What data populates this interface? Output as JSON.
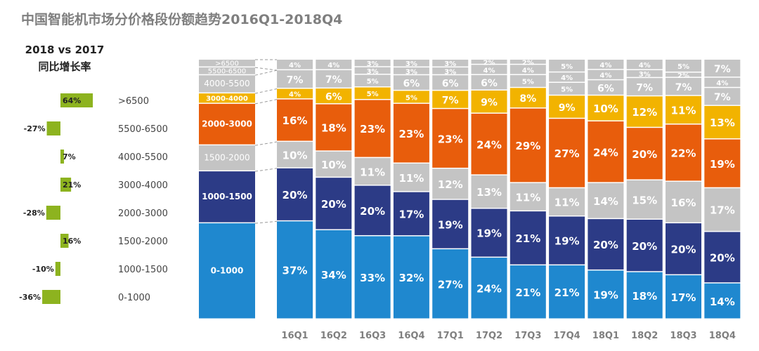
{
  "chart_data": {
    "type": "bar",
    "title": "中国智能机市场分价格段份额趋势2016Q1-2018Q4",
    "growth_panel": {
      "title_line1": "2018 vs 2017",
      "title_line2": "同比增长率",
      "rows": [
        {
          "segment": ">6500",
          "value": 64,
          "label": "64%"
        },
        {
          "segment": "5500-6500",
          "value": -27,
          "label": "-27%"
        },
        {
          "segment": "4000-5500",
          "value": 7,
          "label": "7%"
        },
        {
          "segment": "3000-4000",
          "value": 21,
          "label": "21%"
        },
        {
          "segment": "2000-3000",
          "value": -28,
          "label": "-28%"
        },
        {
          "segment": "1500-2000",
          "value": 16,
          "label": "16%"
        },
        {
          "segment": "1000-1500",
          "value": -10,
          "label": "-10%"
        },
        {
          "segment": "0-1000",
          "value": -36,
          "label": "-36%"
        }
      ]
    },
    "legend_bar": {
      "segments": [
        {
          "label": "0-1000",
          "value": 37
        },
        {
          "label": "1000-1500",
          "value": 20
        },
        {
          "label": "1500-2000",
          "value": 10
        },
        {
          "label": "2000-3000",
          "value": 16
        },
        {
          "label": "3000-4000",
          "value": 4
        },
        {
          "label": "4000-5500",
          "value": 7
        },
        {
          "label": "5500-6500",
          "value": 3
        },
        {
          "label": ">6500",
          "value": 3
        }
      ]
    },
    "categories": [
      "16Q1",
      "16Q2",
      "16Q3",
      "16Q4",
      "17Q1",
      "17Q2",
      "17Q3",
      "17Q4",
      "18Q1",
      "18Q2",
      "18Q3",
      "18Q4"
    ],
    "series": [
      {
        "name": "0-1000",
        "color": "#1f88cf",
        "values": [
          37,
          34,
          33,
          32,
          27,
          24,
          21,
          21,
          19,
          18,
          17,
          14
        ]
      },
      {
        "name": "1000-1500",
        "color": "#2c3b86",
        "values": [
          20,
          20,
          20,
          17,
          19,
          19,
          21,
          19,
          20,
          20,
          20,
          20
        ]
      },
      {
        "name": "1500-2000",
        "color": "#c4c4c4",
        "values": [
          10,
          10,
          11,
          11,
          12,
          13,
          11,
          11,
          14,
          15,
          16,
          17
        ]
      },
      {
        "name": "2000-3000",
        "color": "#e85d0c",
        "values": [
          16,
          18,
          23,
          23,
          23,
          24,
          29,
          27,
          24,
          20,
          22,
          19
        ]
      },
      {
        "name": "3000-4000",
        "color": "#f2b300",
        "values": [
          4,
          6,
          5,
          5,
          7,
          9,
          8,
          9,
          10,
          12,
          11,
          13
        ]
      },
      {
        "name": "4000-5500",
        "color": "#c4c4c4",
        "values": [
          7,
          7,
          5,
          6,
          6,
          6,
          5,
          5,
          6,
          7,
          7,
          7
        ]
      },
      {
        "name": "5500-6500",
        "color": "#c4c4c4",
        "values": [
          null,
          null,
          3,
          3,
          3,
          4,
          4,
          4,
          4,
          3,
          2,
          4
        ]
      },
      {
        "name": ">6500",
        "color": "#c4c4c4",
        "values": [
          4,
          4,
          3,
          3,
          3,
          2,
          2,
          5,
          4,
          4,
          5,
          7
        ]
      }
    ],
    "ylim": [
      0,
      100
    ],
    "xlabel": "",
    "ylabel": ""
  },
  "colors": {
    "title": "#7f7f7f",
    "growth_bar": "#8db31f",
    "gray_text": "#ffffff",
    "label_dark": "#333333"
  }
}
